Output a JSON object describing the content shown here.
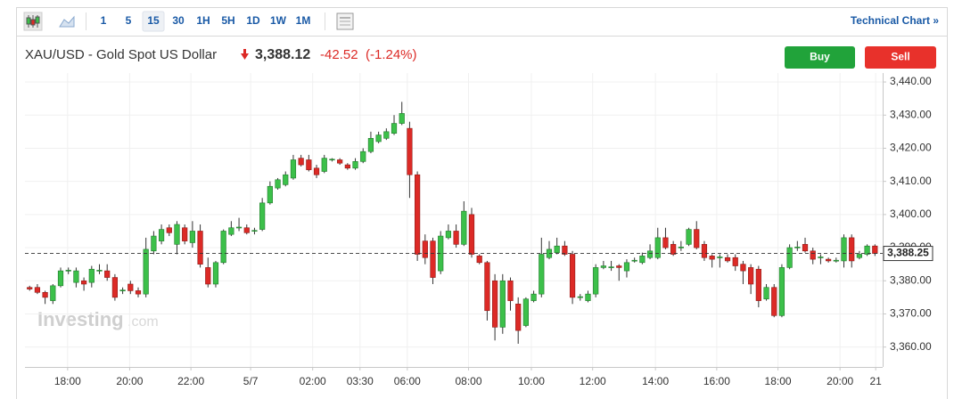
{
  "toolbar": {
    "intervals": [
      "1",
      "5",
      "15",
      "30",
      "1H",
      "5H",
      "1D",
      "1W",
      "1M"
    ],
    "active_interval": "15",
    "link": "Technical Chart »"
  },
  "quote": {
    "symbol": "XAU/USD - Gold Spot US Dollar",
    "price": "3,388.12",
    "change": "-42.52",
    "change_pct": "(-1.24%)"
  },
  "buttons": {
    "buy": "Buy",
    "sell": "Sell"
  },
  "watermark": {
    "brand": "Investing",
    "suffix": ".com"
  },
  "chart_data": {
    "type": "candlestick",
    "up_color": "#3cc04a",
    "down_color": "#dc2a26",
    "candles": {
      "open": [
        3378,
        3378,
        3376.5,
        3374,
        3378.5,
        3383,
        3379.5,
        3380,
        3379.5,
        3383,
        3383,
        3381,
        3377,
        3379,
        3377,
        3376,
        3389,
        3392,
        3396,
        3391,
        3396,
        3391.5,
        3395,
        3384,
        3379,
        3385.5,
        3394,
        3396,
        3396,
        3395,
        3395.5,
        3403.5,
        3408,
        3409,
        3411,
        3417,
        3416.5,
        3414,
        3413,
        3416.5,
        3416.5,
        3415,
        3414,
        3416,
        3419,
        3422,
        3423,
        3424.5,
        3427.5,
        3426,
        3412,
        3392,
        3392,
        3383,
        3393,
        3395,
        3391,
        3400,
        3387.5,
        3385.5,
        3380,
        3366,
        3380,
        3373,
        3366.5,
        3374,
        3376,
        3387,
        3388.5,
        3390.5,
        3388,
        3375,
        3374,
        3376,
        3384,
        3384,
        3384.5,
        3383,
        3386,
        3385.5,
        3387,
        3387,
        3393,
        3391,
        3390,
        3391,
        3395.5,
        3391,
        3387.5,
        3387,
        3387,
        3387,
        3385,
        3384,
        3383.5,
        3374.5,
        3378,
        3369.5,
        3384,
        3390,
        3391,
        3389,
        3387,
        3386.5,
        3386,
        3386,
        3393,
        3387,
        3388,
        3390.5
      ],
      "high": [
        3378.5,
        3379,
        3377,
        3379,
        3384,
        3384,
        3384,
        3381,
        3384.5,
        3385,
        3385,
        3382,
        3378,
        3380,
        3378,
        3393,
        3395,
        3397,
        3397,
        3398,
        3397,
        3398,
        3397,
        3387,
        3386,
        3395.5,
        3398,
        3399,
        3397,
        3396,
        3405,
        3410,
        3411,
        3413,
        3418,
        3418,
        3418,
        3415,
        3418,
        3417,
        3417,
        3415.5,
        3417,
        3420,
        3425,
        3425,
        3426,
        3430,
        3434,
        3428,
        3413,
        3394,
        3393,
        3395,
        3397,
        3397,
        3404,
        3402,
        3388,
        3386,
        3382,
        3382,
        3381,
        3375,
        3375,
        3377,
        3393,
        3392,
        3393,
        3392,
        3389,
        3376,
        3377,
        3385,
        3386,
        3386,
        3385,
        3386.5,
        3387,
        3388.5,
        3391,
        3396,
        3396,
        3392,
        3392,
        3396,
        3398,
        3392,
        3388,
        3388,
        3388,
        3388,
        3386,
        3385,
        3384.5,
        3379,
        3379,
        3385,
        3391,
        3392,
        3393,
        3390,
        3388,
        3387,
        3387,
        3394,
        3394,
        3389,
        3391,
        3391
      ],
      "low": [
        3377,
        3376,
        3373,
        3373,
        3378,
        3382,
        3378,
        3377,
        3378,
        3382,
        3380,
        3374,
        3376,
        3376,
        3375,
        3375,
        3388,
        3391,
        3393.5,
        3388,
        3391,
        3390,
        3384,
        3378,
        3378,
        3385,
        3393.5,
        3395,
        3394,
        3394,
        3395,
        3403,
        3407.5,
        3408.5,
        3410.5,
        3414.5,
        3413,
        3411,
        3412.5,
        3416,
        3415,
        3413.5,
        3413.5,
        3415.5,
        3418.5,
        3421.5,
        3422.5,
        3424,
        3427,
        3405,
        3386,
        3385,
        3379,
        3382,
        3392.5,
        3390,
        3390.5,
        3387,
        3385,
        3368,
        3362,
        3364,
        3371,
        3361,
        3366,
        3373.5,
        3375,
        3386.5,
        3388,
        3387.5,
        3373,
        3374,
        3373.5,
        3375,
        3383.5,
        3383,
        3380,
        3381,
        3385.5,
        3385,
        3386.5,
        3386.5,
        3389.5,
        3387.5,
        3389,
        3390.5,
        3389.5,
        3386,
        3384,
        3384,
        3385.5,
        3383,
        3379,
        3376,
        3372,
        3374,
        3369,
        3369,
        3383.5,
        3389,
        3388.5,
        3385,
        3385,
        3385.5,
        3385.5,
        3384,
        3384,
        3386.5,
        3387.5,
        3387.5
      ],
      "close": [
        3377.5,
        3376.5,
        3375,
        3378.5,
        3383,
        3383.2,
        3383,
        3379,
        3383.5,
        3383.2,
        3381,
        3375,
        3377.2,
        3377,
        3376,
        3389.5,
        3393.5,
        3395.5,
        3394.5,
        3397,
        3392,
        3395,
        3385,
        3379,
        3385.5,
        3395,
        3396,
        3396.2,
        3394.5,
        3395.2,
        3403.5,
        3408.5,
        3410.5,
        3412,
        3416.5,
        3415,
        3413.5,
        3412,
        3417,
        3416.7,
        3415.5,
        3414,
        3416,
        3419,
        3423,
        3424,
        3425,
        3427.5,
        3430.5,
        3412,
        3388,
        3387,
        3381,
        3393.5,
        3395,
        3391,
        3401,
        3388,
        3385.5,
        3371,
        3366,
        3380,
        3374,
        3365,
        3374.5,
        3376,
        3388,
        3389.5,
        3390.5,
        3388,
        3375,
        3375.2,
        3376,
        3384,
        3384.5,
        3384.2,
        3384,
        3385.5,
        3386.2,
        3387.5,
        3389,
        3393,
        3390,
        3388,
        3390.2,
        3395.5,
        3390,
        3387,
        3386.5,
        3387.2,
        3386,
        3384.5,
        3383,
        3379,
        3374,
        3378,
        3369.5,
        3384,
        3390,
        3390.2,
        3389,
        3386.5,
        3387.2,
        3386,
        3386.2,
        3393,
        3386,
        3388,
        3390.5,
        3388.25
      ]
    },
    "last_price": {
      "value": 3388.25,
      "label": "3,388.25"
    },
    "ylim": [
      3354,
      3442.7
    ],
    "yticks": [
      {
        "value": 3360,
        "label": "3,360.00"
      },
      {
        "value": 3370,
        "label": "3,370.00"
      },
      {
        "value": 3380,
        "label": "3,380.00"
      },
      {
        "value": 3390,
        "label": "3,390.00"
      },
      {
        "value": 3400,
        "label": "3,400.00"
      },
      {
        "value": 3410,
        "label": "3,410.00"
      },
      {
        "value": 3420,
        "label": "3,420.00"
      },
      {
        "value": 3430,
        "label": "3,430.00"
      },
      {
        "value": 3440,
        "label": "3,440.00"
      }
    ],
    "xlim": [
      -0.6,
      110
    ],
    "xticks": [
      {
        "value": 4.9,
        "label": "18:00"
      },
      {
        "value": 12.9,
        "label": "20:00"
      },
      {
        "value": 20.8,
        "label": "22:00"
      },
      {
        "value": 28.5,
        "label": "5/7"
      },
      {
        "value": 36.5,
        "label": "02:00"
      },
      {
        "value": 42.6,
        "label": "03:30"
      },
      {
        "value": 48.7,
        "label": "06:00"
      },
      {
        "value": 56.6,
        "label": "08:00"
      },
      {
        "value": 64.7,
        "label": "10:00"
      },
      {
        "value": 72.6,
        "label": "12:00"
      },
      {
        "value": 80.7,
        "label": "14:00"
      },
      {
        "value": 88.6,
        "label": "16:00"
      },
      {
        "value": 96.5,
        "label": "18:00"
      },
      {
        "value": 104.5,
        "label": "20:00"
      },
      {
        "value": 109.1,
        "label": "21"
      }
    ],
    "grid": true
  }
}
